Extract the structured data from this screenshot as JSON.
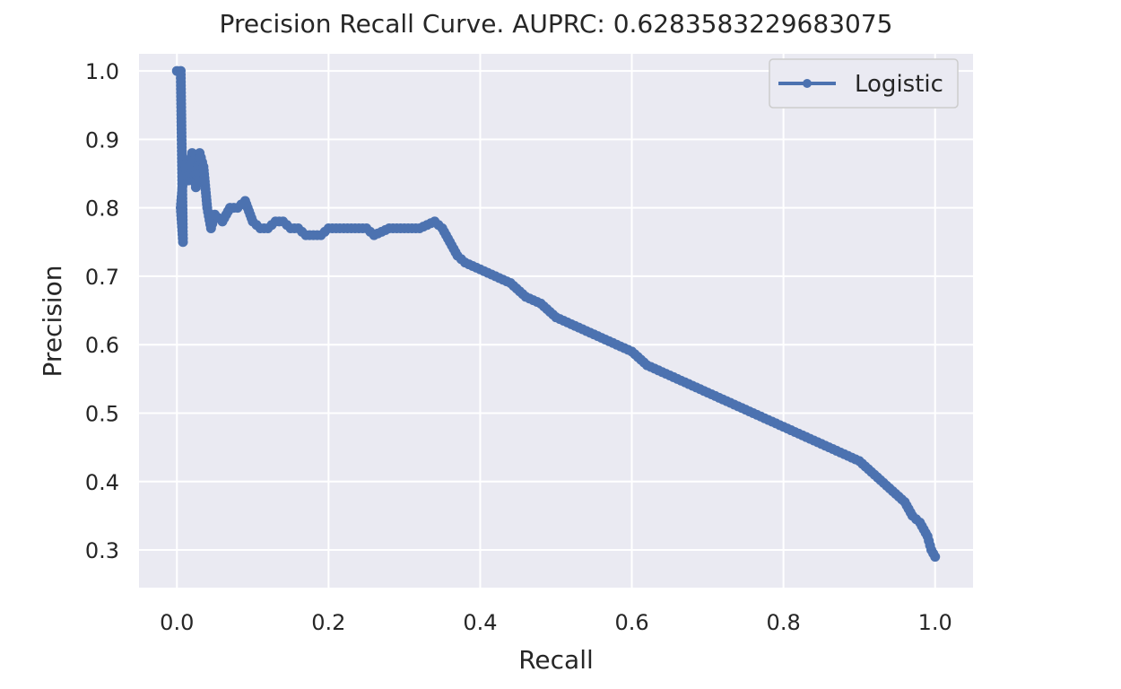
{
  "chart_data": {
    "type": "line",
    "title": "Precision Recall Curve. AUPRC: 0.6283583229683075",
    "xlabel": "Recall",
    "ylabel": "Precision",
    "xlim": [
      -0.05,
      1.05
    ],
    "ylim": [
      0.245,
      1.025
    ],
    "xticks": [
      0.0,
      0.2,
      0.4,
      0.6,
      0.8,
      1.0
    ],
    "xtick_labels": [
      "0.0",
      "0.2",
      "0.4",
      "0.6",
      "0.8",
      "1.0"
    ],
    "yticks": [
      0.3,
      0.4,
      0.5,
      0.6,
      0.7,
      0.8,
      0.9,
      1.0
    ],
    "ytick_labels": [
      "0.3",
      "0.4",
      "0.5",
      "0.6",
      "0.7",
      "0.8",
      "0.9",
      "1.0"
    ],
    "grid": true,
    "legend_position": "top-right",
    "colors": {
      "series": "#4c72b0",
      "background": "#eaeaf2",
      "grid": "#ffffff"
    },
    "series": [
      {
        "name": "Logistic",
        "marker": "dot",
        "x": [
          0.0,
          0.005,
          0.008,
          0.005,
          0.01,
          0.015,
          0.02,
          0.025,
          0.03,
          0.035,
          0.04,
          0.045,
          0.05,
          0.06,
          0.07,
          0.08,
          0.09,
          0.1,
          0.11,
          0.12,
          0.13,
          0.14,
          0.15,
          0.16,
          0.17,
          0.18,
          0.19,
          0.2,
          0.22,
          0.24,
          0.25,
          0.26,
          0.28,
          0.3,
          0.32,
          0.34,
          0.35,
          0.36,
          0.37,
          0.38,
          0.4,
          0.42,
          0.44,
          0.46,
          0.48,
          0.5,
          0.52,
          0.54,
          0.56,
          0.58,
          0.6,
          0.62,
          0.64,
          0.66,
          0.68,
          0.7,
          0.72,
          0.74,
          0.76,
          0.78,
          0.8,
          0.82,
          0.84,
          0.86,
          0.88,
          0.9,
          0.92,
          0.94,
          0.96,
          0.97,
          0.98,
          0.99,
          0.995,
          1.0
        ],
        "y": [
          1.0,
          1.0,
          0.75,
          0.8,
          0.87,
          0.84,
          0.88,
          0.83,
          0.88,
          0.86,
          0.8,
          0.77,
          0.79,
          0.78,
          0.8,
          0.8,
          0.81,
          0.78,
          0.77,
          0.77,
          0.78,
          0.78,
          0.77,
          0.77,
          0.76,
          0.76,
          0.76,
          0.77,
          0.77,
          0.77,
          0.77,
          0.76,
          0.77,
          0.77,
          0.77,
          0.78,
          0.77,
          0.75,
          0.73,
          0.72,
          0.71,
          0.7,
          0.69,
          0.67,
          0.66,
          0.64,
          0.63,
          0.62,
          0.61,
          0.6,
          0.59,
          0.57,
          0.56,
          0.55,
          0.54,
          0.53,
          0.52,
          0.51,
          0.5,
          0.49,
          0.48,
          0.47,
          0.46,
          0.45,
          0.44,
          0.43,
          0.41,
          0.39,
          0.37,
          0.35,
          0.34,
          0.32,
          0.3,
          0.29
        ]
      }
    ]
  }
}
